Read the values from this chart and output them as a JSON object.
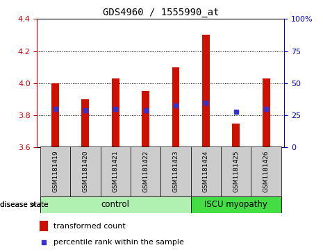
{
  "title": "GDS4960 / 1555990_at",
  "samples": [
    "GSM1181419",
    "GSM1181420",
    "GSM1181421",
    "GSM1181422",
    "GSM1181423",
    "GSM1181424",
    "GSM1181425",
    "GSM1181426"
  ],
  "bar_tops": [
    4.0,
    3.9,
    4.03,
    3.95,
    4.1,
    4.3,
    3.75,
    4.03
  ],
  "bar_bottom": 3.6,
  "percentile_values": [
    3.84,
    3.83,
    3.84,
    3.83,
    3.86,
    3.88,
    3.82,
    3.84
  ],
  "bar_color": "#cc1100",
  "percentile_color": "#3333cc",
  "ylim": [
    3.6,
    4.4
  ],
  "y_ticks_left": [
    3.6,
    3.8,
    4.0,
    4.2,
    4.4
  ],
  "y_ticks_right": [
    0,
    25,
    50,
    75,
    100
  ],
  "ctrl_color": "#b0f0b0",
  "iscu_color": "#44dd44",
  "disease_label": "disease state",
  "legend_items": [
    "transformed count",
    "percentile rank within the sample"
  ],
  "legend_colors": [
    "#cc1100",
    "#3333cc"
  ],
  "left_tick_color": "#cc0000",
  "right_tick_color": "#0000cc",
  "tick_area_color": "#cccccc",
  "figsize": [
    4.65,
    3.63
  ],
  "dpi": 100
}
